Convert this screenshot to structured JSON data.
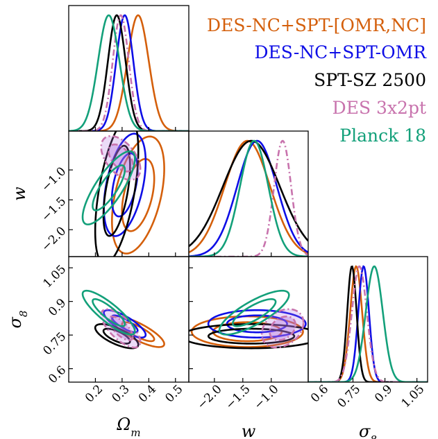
{
  "chart_data": {
    "type": "corner",
    "parameters": [
      {
        "key": "Om",
        "label": "Ω",
        "label_sub": "m",
        "range": [
          0.1,
          0.55
        ],
        "ticks": [
          0.2,
          0.3,
          0.4,
          0.5
        ],
        "tick_labels": [
          "0.2",
          "0.3",
          "0.4",
          "0.5"
        ]
      },
      {
        "key": "w",
        "label": "w",
        "label_sub": "",
        "range": [
          -2.45,
          -0.35
        ],
        "ticks": [
          -2.0,
          -1.5,
          -1.0
        ],
        "tick_labels": [
          "−2.0",
          "−1.5",
          "−1.0"
        ]
      },
      {
        "key": "s8",
        "label": "σ",
        "label_sub": "8",
        "range": [
          0.54,
          1.1
        ],
        "ticks": [
          0.6,
          0.75,
          0.9,
          1.05
        ],
        "tick_labels": [
          "0.6",
          "0.75",
          "0.9",
          "1.05"
        ]
      }
    ],
    "series": [
      {
        "name": "DES-NC+SPT-[OMR,NC]",
        "color": "#d45f0b",
        "dash": "solid",
        "filled": false,
        "mean": {
          "Om": 0.36,
          "w": -1.42,
          "s8": 0.765
        },
        "sd": {
          "Om": 0.04,
          "w": 0.4,
          "s8": 0.028
        },
        "corr": {
          "Om_w": 0.45,
          "Om_s8": -0.8,
          "w_s8": 0.0
        }
      },
      {
        "name": "DES-NC+SPT-OMR",
        "color": "#0e0ee6",
        "dash": "solid",
        "filled": false,
        "mean": {
          "Om": 0.31,
          "w": -1.25,
          "s8": 0.8
        },
        "sd": {
          "Om": 0.032,
          "w": 0.35,
          "s8": 0.025
        },
        "corr": {
          "Om_w": 0.45,
          "Om_s8": -0.8,
          "w_s8": 0.0
        }
      },
      {
        "name": "SPT-SZ 2500",
        "color": "#000000",
        "dash": "solid",
        "filled": false,
        "mean": {
          "Om": 0.28,
          "w": -1.35,
          "s8": 0.745
        },
        "sd": {
          "Om": 0.033,
          "w": 0.5,
          "s8": 0.022
        },
        "corr": {
          "Om_w": 0.55,
          "Om_s8": -0.7,
          "w_s8": 0.0
        }
      },
      {
        "name": "DES 3x2pt",
        "color": "#c873ad",
        "dash": "dashdot",
        "filled": true,
        "fill": "#b06fe0",
        "mean": {
          "Om": 0.295,
          "w": -0.8,
          "s8": 0.78
        },
        "sd": {
          "Om": 0.03,
          "w": 0.15,
          "s8": 0.035
        },
        "corr": {
          "Om_w": -0.5,
          "Om_s8": -0.7,
          "w_s8": 0.3
        }
      },
      {
        "name": "Planck 18",
        "color": "#13a07a",
        "dash": "solid",
        "filled": false,
        "mean": {
          "Om": 0.25,
          "w": -1.3,
          "s8": 0.85
        },
        "sd": {
          "Om": 0.04,
          "w": 0.25,
          "s8": 0.04
        },
        "corr": {
          "Om_w": 0.8,
          "Om_s8": -0.85,
          "w_s8": 0.8
        }
      }
    ],
    "levels": [
      0.68,
      0.95
    ],
    "legend_position": "top-right",
    "grid": false
  }
}
